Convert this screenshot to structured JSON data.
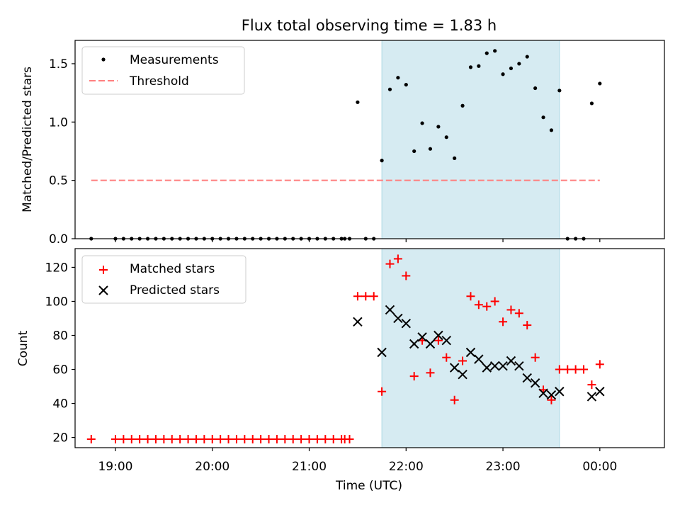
{
  "chart_data": {
    "type": "scatter",
    "title": "Flux total observing time = 1.83 h",
    "x_axis": {
      "label": "Time (UTC)",
      "range": [
        "18:35",
        "00:40"
      ],
      "ticks": [
        "19:00",
        "20:00",
        "21:00",
        "22:00",
        "23:00",
        "00:00"
      ]
    },
    "highlight_window": {
      "start": "21:45",
      "end": "23:35",
      "color": "#add8e6"
    },
    "colors": {
      "measurements": "#000000",
      "threshold": "#ff7f7f",
      "matched": "#ff0000",
      "predicted": "#000000",
      "highlight": "#add8e6"
    },
    "panels": [
      {
        "id": "ratio",
        "ylabel": "Matched/Predicted stars",
        "ylim": [
          0,
          1.7
        ],
        "yticks": [
          "0.0",
          "0.5",
          "1.0",
          "1.5"
        ],
        "ytick_values": [
          0,
          0.5,
          1.0,
          1.5
        ],
        "legend": {
          "placement": "top-left",
          "entries": [
            "Measurements",
            "Threshold"
          ]
        },
        "threshold": {
          "label": "Threshold",
          "value": 0.5,
          "x_start": "18:45",
          "x_end": "00:00"
        },
        "series": [
          {
            "name": "Measurements",
            "marker": "dot",
            "points": [
              [
                "18:45",
                0
              ],
              [
                "19:00",
                0
              ],
              [
                "19:05",
                0
              ],
              [
                "19:10",
                0
              ],
              [
                "19:15",
                0
              ],
              [
                "19:20",
                0
              ],
              [
                "19:25",
                0
              ],
              [
                "19:30",
                0
              ],
              [
                "19:35",
                0
              ],
              [
                "19:40",
                0
              ],
              [
                "19:45",
                0
              ],
              [
                "19:50",
                0
              ],
              [
                "19:55",
                0
              ],
              [
                "20:00",
                0
              ],
              [
                "20:05",
                0
              ],
              [
                "20:10",
                0
              ],
              [
                "20:15",
                0
              ],
              [
                "20:20",
                0
              ],
              [
                "20:25",
                0
              ],
              [
                "20:30",
                0
              ],
              [
                "20:35",
                0
              ],
              [
                "20:40",
                0
              ],
              [
                "20:45",
                0
              ],
              [
                "20:50",
                0
              ],
              [
                "20:55",
                0
              ],
              [
                "21:00",
                0
              ],
              [
                "21:05",
                0
              ],
              [
                "21:10",
                0
              ],
              [
                "21:15",
                0
              ],
              [
                "21:20",
                0
              ],
              [
                "21:22",
                0
              ],
              [
                "21:25",
                0
              ],
              [
                "21:30",
                1.17
              ],
              [
                "21:35",
                0
              ],
              [
                "21:40",
                0
              ],
              [
                "21:45",
                0.67
              ],
              [
                "21:50",
                1.28
              ],
              [
                "21:55",
                1.38
              ],
              [
                "22:00",
                1.32
              ],
              [
                "22:05",
                0.75
              ],
              [
                "22:10",
                0.99
              ],
              [
                "22:15",
                0.77
              ],
              [
                "22:20",
                0.96
              ],
              [
                "22:25",
                0.87
              ],
              [
                "22:30",
                0.69
              ],
              [
                "22:35",
                1.14
              ],
              [
                "22:40",
                1.47
              ],
              [
                "22:45",
                1.48
              ],
              [
                "22:50",
                1.59
              ],
              [
                "22:55",
                1.61
              ],
              [
                "23:00",
                1.41
              ],
              [
                "23:05",
                1.46
              ],
              [
                "23:10",
                1.5
              ],
              [
                "23:15",
                1.56
              ],
              [
                "23:20",
                1.29
              ],
              [
                "23:25",
                1.04
              ],
              [
                "23:30",
                0.93
              ],
              [
                "23:35",
                1.27
              ],
              [
                "23:40",
                0
              ],
              [
                "23:45",
                0
              ],
              [
                "23:50",
                0
              ],
              [
                "23:55",
                1.16
              ],
              [
                "00:00",
                1.33
              ]
            ]
          }
        ]
      },
      {
        "id": "count",
        "ylabel": "Count",
        "ylim": [
          14,
          131
        ],
        "yticks": [
          "20",
          "40",
          "60",
          "80",
          "100",
          "120"
        ],
        "ytick_values": [
          20,
          40,
          60,
          80,
          100,
          120
        ],
        "legend": {
          "placement": "top-left",
          "entries": [
            "Matched stars",
            "Predicted stars"
          ]
        },
        "series": [
          {
            "name": "Matched stars",
            "marker": "plus",
            "points": [
              [
                "18:45",
                19
              ],
              [
                "19:00",
                19
              ],
              [
                "19:05",
                19
              ],
              [
                "19:10",
                19
              ],
              [
                "19:15",
                19
              ],
              [
                "19:20",
                19
              ],
              [
                "19:25",
                19
              ],
              [
                "19:30",
                19
              ],
              [
                "19:35",
                19
              ],
              [
                "19:40",
                19
              ],
              [
                "19:45",
                19
              ],
              [
                "19:50",
                19
              ],
              [
                "19:55",
                19
              ],
              [
                "20:00",
                19
              ],
              [
                "20:05",
                19
              ],
              [
                "20:10",
                19
              ],
              [
                "20:15",
                19
              ],
              [
                "20:20",
                19
              ],
              [
                "20:25",
                19
              ],
              [
                "20:30",
                19
              ],
              [
                "20:35",
                19
              ],
              [
                "20:40",
                19
              ],
              [
                "20:45",
                19
              ],
              [
                "20:50",
                19
              ],
              [
                "20:55",
                19
              ],
              [
                "21:00",
                19
              ],
              [
                "21:05",
                19
              ],
              [
                "21:10",
                19
              ],
              [
                "21:15",
                19
              ],
              [
                "21:20",
                19
              ],
              [
                "21:22",
                19
              ],
              [
                "21:25",
                19
              ],
              [
                "21:30",
                103
              ],
              [
                "21:35",
                103
              ],
              [
                "21:40",
                103
              ],
              [
                "21:45",
                47
              ],
              [
                "21:50",
                122
              ],
              [
                "21:55",
                125
              ],
              [
                "22:00",
                115
              ],
              [
                "22:05",
                56
              ],
              [
                "22:10",
                77
              ],
              [
                "22:15",
                58
              ],
              [
                "22:20",
                77
              ],
              [
                "22:25",
                67
              ],
              [
                "22:30",
                42
              ],
              [
                "22:35",
                65
              ],
              [
                "22:40",
                103
              ],
              [
                "22:45",
                98
              ],
              [
                "22:50",
                97
              ],
              [
                "22:55",
                100
              ],
              [
                "23:00",
                88
              ],
              [
                "23:05",
                95
              ],
              [
                "23:10",
                93
              ],
              [
                "23:15",
                86
              ],
              [
                "23:20",
                67
              ],
              [
                "23:25",
                48
              ],
              [
                "23:30",
                42
              ],
              [
                "23:35",
                60
              ],
              [
                "23:40",
                60
              ],
              [
                "23:45",
                60
              ],
              [
                "23:50",
                60
              ],
              [
                "23:55",
                51
              ],
              [
                "00:00",
                63
              ]
            ]
          },
          {
            "name": "Predicted stars",
            "marker": "x",
            "points": [
              [
                "21:30",
                88
              ],
              [
                "21:45",
                70
              ],
              [
                "21:50",
                95
              ],
              [
                "21:55",
                90
              ],
              [
                "22:00",
                87
              ],
              [
                "22:05",
                75
              ],
              [
                "22:10",
                79
              ],
              [
                "22:15",
                75
              ],
              [
                "22:20",
                80
              ],
              [
                "22:25",
                77
              ],
              [
                "22:30",
                61
              ],
              [
                "22:35",
                57
              ],
              [
                "22:40",
                70
              ],
              [
                "22:45",
                66
              ],
              [
                "22:50",
                61
              ],
              [
                "22:55",
                62
              ],
              [
                "23:00",
                62
              ],
              [
                "23:05",
                65
              ],
              [
                "23:10",
                62
              ],
              [
                "23:15",
                55
              ],
              [
                "23:20",
                52
              ],
              [
                "23:25",
                46
              ],
              [
                "23:30",
                45
              ],
              [
                "23:35",
                47
              ],
              [
                "23:55",
                44
              ],
              [
                "00:00",
                47
              ]
            ]
          }
        ]
      }
    ]
  }
}
